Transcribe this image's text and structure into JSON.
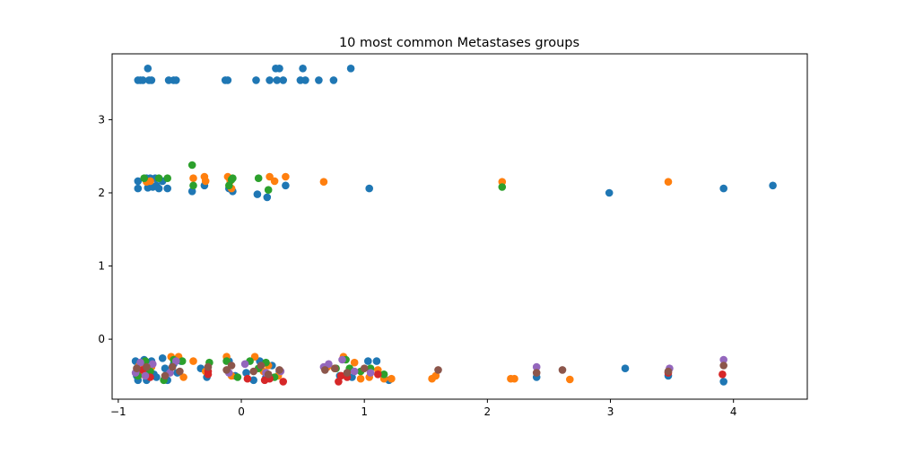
{
  "chart_data": {
    "type": "scatter",
    "title": "10 most common Metastases groups",
    "xlabel": "",
    "ylabel": "",
    "xlim": [
      -1.05,
      4.6
    ],
    "ylim": [
      -0.82,
      3.9
    ],
    "xticks": [
      -1,
      0,
      1,
      2,
      3,
      4
    ],
    "xtick_labels": [
      "−1",
      "0",
      "1",
      "2",
      "3",
      "4"
    ],
    "yticks": [
      0,
      1,
      2,
      3
    ],
    "ytick_labels": [
      "0",
      "1",
      "2",
      "3"
    ],
    "grid": false,
    "legend": "none",
    "colors": [
      "#1f77b4",
      "#ff7f0e",
      "#2ca02c",
      "#d62728",
      "#9467bd",
      "#8c564b"
    ],
    "series": [
      {
        "color": "#1f77b4",
        "points": [
          [
            -0.84,
            3.54
          ],
          [
            -0.82,
            3.54
          ],
          [
            -0.8,
            3.54
          ],
          [
            -0.76,
            3.7
          ],
          [
            -0.75,
            3.54
          ],
          [
            -0.73,
            3.54
          ],
          [
            -0.59,
            3.54
          ],
          [
            -0.55,
            3.54
          ],
          [
            -0.53,
            3.54
          ],
          [
            -0.13,
            3.54
          ],
          [
            -0.11,
            3.54
          ],
          [
            0.12,
            3.54
          ],
          [
            0.23,
            3.54
          ],
          [
            0.28,
            3.7
          ],
          [
            0.29,
            3.54
          ],
          [
            0.31,
            3.7
          ],
          [
            0.34,
            3.54
          ],
          [
            0.48,
            3.54
          ],
          [
            0.5,
            3.7
          ],
          [
            0.52,
            3.54
          ],
          [
            0.63,
            3.54
          ],
          [
            0.75,
            3.54
          ],
          [
            0.89,
            3.7
          ],
          [
            -0.84,
            2.16
          ],
          [
            -0.84,
            2.06
          ],
          [
            -0.77,
            2.2
          ],
          [
            -0.76,
            2.07
          ],
          [
            -0.74,
            2.2
          ],
          [
            -0.72,
            2.08
          ],
          [
            -0.7,
            2.2
          ],
          [
            -0.69,
            2.1
          ],
          [
            -0.67,
            2.06
          ],
          [
            -0.64,
            2.16
          ],
          [
            -0.6,
            2.06
          ],
          [
            -0.4,
            2.02
          ],
          [
            -0.3,
            2.1
          ],
          [
            -0.1,
            2.06
          ],
          [
            -0.07,
            2.02
          ],
          [
            0.13,
            1.98
          ],
          [
            0.21,
            1.94
          ],
          [
            0.36,
            2.1
          ],
          [
            1.04,
            2.06
          ],
          [
            2.99,
            2.0
          ],
          [
            3.92,
            2.06
          ],
          [
            4.32,
            2.1
          ],
          [
            -0.86,
            -0.3
          ],
          [
            -0.85,
            -0.5
          ],
          [
            -0.84,
            -0.56
          ],
          [
            -0.82,
            -0.36
          ],
          [
            -0.8,
            -0.44
          ],
          [
            -0.79,
            -0.28
          ],
          [
            -0.77,
            -0.56
          ],
          [
            -0.75,
            -0.4
          ],
          [
            -0.73,
            -0.3
          ],
          [
            -0.71,
            -0.48
          ],
          [
            -0.69,
            -0.52
          ],
          [
            -0.64,
            -0.26
          ],
          [
            -0.62,
            -0.4
          ],
          [
            -0.6,
            -0.56
          ],
          [
            -0.55,
            -0.34
          ],
          [
            -0.52,
            -0.46
          ],
          [
            -0.49,
            -0.3
          ],
          [
            -0.33,
            -0.4
          ],
          [
            -0.28,
            -0.52
          ],
          [
            -0.1,
            -0.3
          ],
          [
            -0.05,
            -0.5
          ],
          [
            0.04,
            -0.46
          ],
          [
            0.1,
            -0.56
          ],
          [
            0.15,
            -0.3
          ],
          [
            0.2,
            -0.52
          ],
          [
            0.25,
            -0.36
          ],
          [
            0.31,
            -0.44
          ],
          [
            0.8,
            -0.5
          ],
          [
            0.9,
            -0.52
          ],
          [
            1.03,
            -0.3
          ],
          [
            1.1,
            -0.3
          ],
          [
            1.2,
            -0.56
          ],
          [
            2.4,
            -0.52
          ],
          [
            3.12,
            -0.4
          ],
          [
            3.47,
            -0.5
          ],
          [
            3.92,
            -0.58
          ]
        ]
      },
      {
        "color": "#ff7f0e",
        "points": [
          [
            -0.77,
            2.15
          ],
          [
            -0.74,
            2.16
          ],
          [
            -0.39,
            2.2
          ],
          [
            -0.3,
            2.22
          ],
          [
            -0.29,
            2.16
          ],
          [
            -0.11,
            2.22
          ],
          [
            -0.09,
            2.16
          ],
          [
            -0.08,
            2.06
          ],
          [
            0.23,
            2.22
          ],
          [
            0.27,
            2.16
          ],
          [
            0.36,
            2.22
          ],
          [
            0.67,
            2.15
          ],
          [
            2.12,
            2.15
          ],
          [
            3.47,
            2.15
          ],
          [
            -0.83,
            -0.36
          ],
          [
            -0.8,
            -0.48
          ],
          [
            -0.73,
            -0.38
          ],
          [
            -0.57,
            -0.24
          ],
          [
            -0.51,
            -0.24
          ],
          [
            -0.47,
            -0.52
          ],
          [
            -0.39,
            -0.3
          ],
          [
            -0.29,
            -0.44
          ],
          [
            -0.12,
            -0.24
          ],
          [
            -0.08,
            -0.5
          ],
          [
            0.11,
            -0.24
          ],
          [
            0.18,
            -0.44
          ],
          [
            0.22,
            -0.36
          ],
          [
            0.3,
            -0.5
          ],
          [
            0.7,
            -0.38
          ],
          [
            0.76,
            -0.4
          ],
          [
            0.83,
            -0.24
          ],
          [
            0.92,
            -0.32
          ],
          [
            0.97,
            -0.54
          ],
          [
            1.04,
            -0.52
          ],
          [
            1.11,
            -0.42
          ],
          [
            1.16,
            -0.54
          ],
          [
            1.22,
            -0.54
          ],
          [
            1.55,
            -0.54
          ],
          [
            1.58,
            -0.5
          ],
          [
            2.19,
            -0.54
          ],
          [
            2.22,
            -0.54
          ],
          [
            2.67,
            -0.55
          ]
        ]
      },
      {
        "color": "#2ca02c",
        "points": [
          [
            -0.79,
            2.2
          ],
          [
            -0.67,
            2.2
          ],
          [
            -0.6,
            2.2
          ],
          [
            -0.4,
            2.38
          ],
          [
            -0.39,
            2.1
          ],
          [
            -0.1,
            2.1
          ],
          [
            -0.08,
            2.18
          ],
          [
            -0.07,
            2.2
          ],
          [
            0.14,
            2.2
          ],
          [
            0.22,
            2.04
          ],
          [
            2.12,
            2.08
          ],
          [
            -0.84,
            -0.5
          ],
          [
            -0.78,
            -0.3
          ],
          [
            -0.74,
            -0.44
          ],
          [
            -0.63,
            -0.56
          ],
          [
            -0.55,
            -0.28
          ],
          [
            -0.48,
            -0.3
          ],
          [
            -0.26,
            -0.32
          ],
          [
            -0.12,
            -0.3
          ],
          [
            -0.03,
            -0.52
          ],
          [
            0.07,
            -0.3
          ],
          [
            0.14,
            -0.4
          ],
          [
            0.2,
            -0.32
          ],
          [
            0.27,
            -0.52
          ],
          [
            0.77,
            -0.4
          ],
          [
            0.85,
            -0.28
          ],
          [
            0.88,
            -0.4
          ],
          [
            0.97,
            -0.44
          ],
          [
            1.05,
            -0.4
          ],
          [
            1.16,
            -0.48
          ]
        ]
      },
      {
        "color": "#d62728",
        "points": [
          [
            -0.8,
            -0.42
          ],
          [
            -0.74,
            -0.52
          ],
          [
            -0.27,
            -0.44
          ],
          [
            -0.27,
            -0.48
          ],
          [
            0.05,
            -0.54
          ],
          [
            0.19,
            -0.56
          ],
          [
            0.23,
            -0.54
          ],
          [
            0.34,
            -0.58
          ],
          [
            0.79,
            -0.58
          ],
          [
            0.81,
            -0.5
          ],
          [
            0.86,
            -0.52
          ],
          [
            1.11,
            -0.48
          ],
          [
            3.47,
            -0.46
          ],
          [
            3.91,
            -0.48
          ]
        ]
      },
      {
        "color": "#9467bd",
        "points": [
          [
            -0.86,
            -0.46
          ],
          [
            -0.82,
            -0.32
          ],
          [
            -0.78,
            -0.5
          ],
          [
            -0.72,
            -0.34
          ],
          [
            -0.58,
            -0.46
          ],
          [
            -0.53,
            -0.3
          ],
          [
            -0.1,
            -0.46
          ],
          [
            0.03,
            -0.34
          ],
          [
            0.2,
            -0.46
          ],
          [
            0.32,
            -0.44
          ],
          [
            0.67,
            -0.38
          ],
          [
            0.71,
            -0.34
          ],
          [
            0.82,
            -0.28
          ],
          [
            0.92,
            -0.44
          ],
          [
            1.05,
            -0.46
          ],
          [
            2.4,
            -0.38
          ],
          [
            3.48,
            -0.4
          ],
          [
            3.92,
            -0.28
          ]
        ]
      },
      {
        "color": "#8c564b",
        "points": [
          [
            -0.85,
            -0.4
          ],
          [
            -0.77,
            -0.38
          ],
          [
            -0.62,
            -0.5
          ],
          [
            -0.56,
            -0.38
          ],
          [
            -0.5,
            -0.44
          ],
          [
            -0.27,
            -0.38
          ],
          [
            -0.12,
            -0.42
          ],
          [
            -0.08,
            -0.36
          ],
          [
            0.1,
            -0.44
          ],
          [
            0.16,
            -0.36
          ],
          [
            0.22,
            -0.48
          ],
          [
            0.31,
            -0.42
          ],
          [
            0.68,
            -0.42
          ],
          [
            0.76,
            -0.4
          ],
          [
            0.86,
            -0.46
          ],
          [
            1.0,
            -0.4
          ],
          [
            1.6,
            -0.42
          ],
          [
            2.4,
            -0.46
          ],
          [
            2.61,
            -0.42
          ],
          [
            3.47,
            -0.44
          ],
          [
            3.92,
            -0.36
          ]
        ]
      }
    ]
  }
}
